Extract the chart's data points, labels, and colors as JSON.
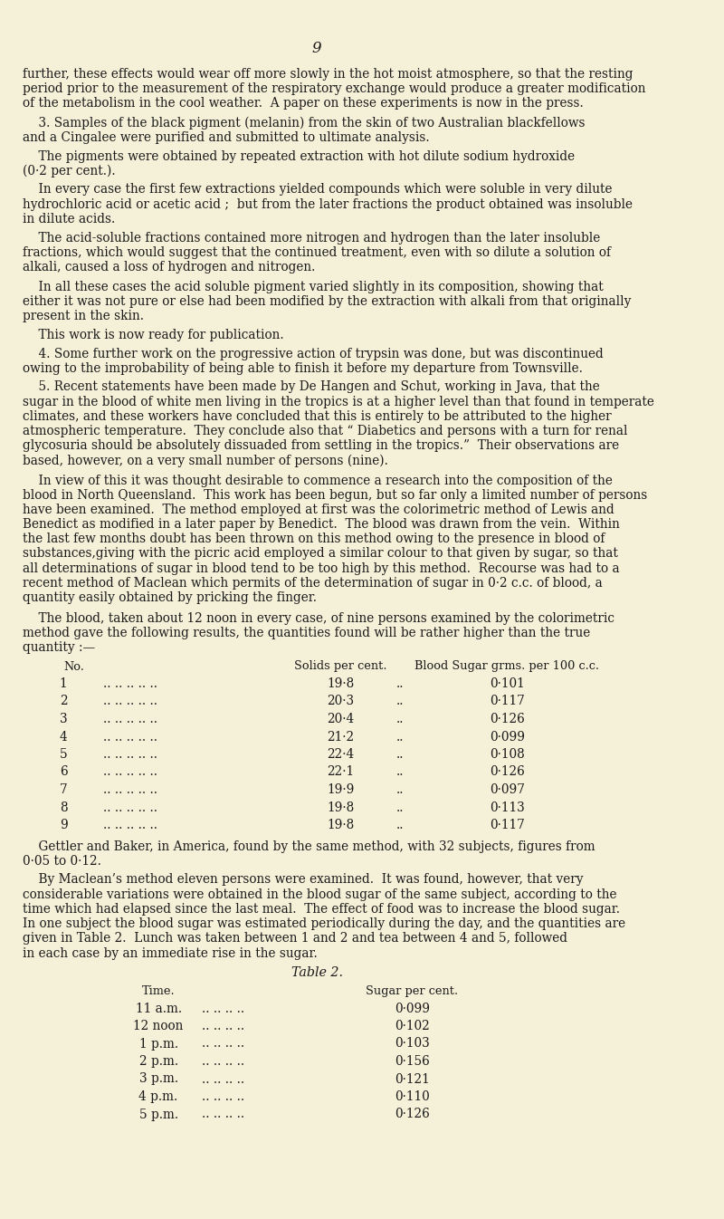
{
  "background_color": "#f5f0d8",
  "page_number": "9",
  "font_size_body": 10.5,
  "font_size_small": 9.5,
  "text_color": "#1a1a1a",
  "paragraphs": [
    "further, these effects would wear off more slowly in the hot moist atmosphere, so that the resting\nperiod prior to the measurement of the respiratory exchange would produce a greater modification\nof the metabolism in the cool weather.  A paper on these experiments is now in the press.",
    "    3. Samples of the black pigment (melanin) from the skin of two Australian blackfellows\nand a Cingalee were purified and submitted to ultimate analysis.",
    "    The pigments were obtained by repeated extraction with hot dilute sodium hydroxide\n(0·2 per cent.).",
    "    In every case the first few extractions yielded compounds which were soluble in very dilute\nhydrochloric acid or acetic acid ;  but from the later fractions the product obtained was insoluble\nin dilute acids.",
    "    The acid-soluble fractions contained more nitrogen and hydrogen than the later insoluble\nfractions, which would suggest that the continued treatment, even with so dilute a solution of\nalkali, caused a loss of hydrogen and nitrogen.",
    "    In all these cases the acid soluble pigment varied slightly in its composition, showing that\neither it was not pure or else had been modified by the extraction with alkali from that originally\npresent in the skin.",
    "    This work is now ready for publication.",
    "    4. Some further work on the progressive action of trypsin was done, but was discontinued\nowing to the improbability of being able to finish it before my departure from Townsville.",
    "    5. Recent statements have been made by De Hangen and Schut, working in Java, that the\nsugar in the blood of white men living in the tropics is at a higher level than that found in temperate\nclimates, and these workers have concluded that this is entirely to be attributed to the higher\natmospheric temperature.  They conclude also that “ Diabetics and persons with a turn for renal\nglycosuria should be absolutely dissuaded from settling in the tropics.”  Their observations are\nbased, however, on a very small number of persons (nine).",
    "    In view of this it was thought desirable to commence a research into the composition of the\nblood in North Queensland.  This work has been begun, but so far only a limited number of persons\nhave been examined.  The method employed at first was the colorimetric method of Lewis and\nBenedict as modified in a later paper by Benedict.  The blood was drawn from the vein.  Within\nthe last few months doubt has been thrown on this method owing to the presence in blood of\nsubstances,giving with the picric acid employed a similar colour to that given by sugar, so that\nall determinations of sugar in blood tend to be too high by this method.  Recourse was had to a\nrecent method of Maclean which permits of the determination of sugar in 0·2 c.c. of blood, a\nquantity easily obtained by pricking the finger.",
    "    The blood, taken about 12 noon in every case, of nine persons examined by the colorimetric\nmethod gave the following results, the quantities found will be rather higher than the true\nquantity :—"
  ],
  "table1_header_no": "No.",
  "table1_header_solids": "Solids per cent.",
  "table1_header_sugar": "Blood Sugar grms. per 100 c.c.",
  "table1_rows": [
    [
      "1",
      "..",
      "..",
      "..",
      "..",
      "..",
      "19·8",
      "..",
      "0·101"
    ],
    [
      "2",
      "..",
      "..",
      "..",
      "..",
      "..",
      "20·3",
      "..",
      "0·117"
    ],
    [
      "3",
      "..",
      "..",
      "..",
      "..",
      "..",
      "20·4",
      "..",
      "0·126"
    ],
    [
      "4",
      "..",
      "..",
      "..",
      "..",
      "..",
      "21·2",
      "..",
      "0·099"
    ],
    [
      "5",
      "..",
      "..",
      "..",
      "..",
      "..",
      "22·4",
      "..",
      "0·108"
    ],
    [
      "6",
      "..",
      "..",
      "..",
      "..",
      "..",
      "22·1",
      "..",
      "0·126"
    ],
    [
      "7",
      "..",
      "..",
      "..",
      "..",
      "..",
      "19·9",
      "..",
      "0·097"
    ],
    [
      "8",
      "..",
      "..",
      "..",
      "..",
      "..",
      "19·8",
      "..",
      "0·113"
    ],
    [
      "9",
      "..",
      "..",
      "..",
      "..",
      "..",
      "19·8",
      "..",
      "0·117"
    ]
  ],
  "after_table1": [
    "    Gettler and Baker, in America, found by the same method, with 32 subjects, figures from\n0·05 to 0·12.",
    "    By Maclean’s method eleven persons were examined.  It was found, however, that very\nconsiderable variations were obtained in the blood sugar of the same subject, according to the\ntime which had elapsed since the last meal.  The effect of food was to increase the blood sugar.\nIn one subject the blood sugar was estimated periodically during the day, and the quantities are\ngiven in Table 2.  Lunch was taken between 1 and 2 and tea between 4 and 5, followed\nin each case by an immediate rise in the sugar."
  ],
  "table2_title": "Table 2.",
  "table2_header_time": "Time.",
  "table2_header_sugar": "Sugar per cent.",
  "table2_rows": [
    [
      "11 a.m.",
      "..",
      "..",
      "..",
      "..",
      "0·099"
    ],
    [
      "12 noon",
      "..",
      "..",
      "..",
      "..",
      "0·102"
    ],
    [
      "1 p.m.",
      "..",
      "..",
      "..",
      "..",
      "0·103"
    ],
    [
      "2 p.m.",
      "..",
      "..",
      "..",
      "..",
      "0·156"
    ],
    [
      "3 p.m.",
      "..",
      "..",
      "..",
      "..",
      "0·121"
    ],
    [
      "4 p.m.",
      "..",
      "..",
      "..",
      "..",
      "0·110"
    ],
    [
      "5 p.m.",
      "..",
      "..",
      "..",
      "..",
      "0·126"
    ]
  ]
}
